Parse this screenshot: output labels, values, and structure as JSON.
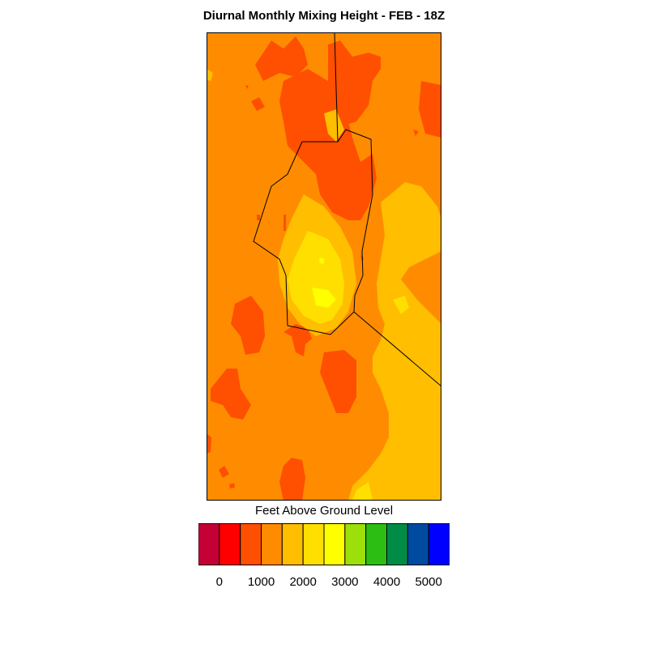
{
  "title": "Diurnal Monthly Mixing Height - FEB - 18Z",
  "colorbar": {
    "label": "Feet Above Ground Level",
    "colors": [
      "#c40034",
      "#ff0000",
      "#ff4f00",
      "#ff8c00",
      "#ffbe00",
      "#ffdf00",
      "#ffff00",
      "#9be00a",
      "#2dbe14",
      "#008c46",
      "#004ba0",
      "#0000ff"
    ],
    "tick_labels": [
      "0",
      "1000",
      "2000",
      "3000",
      "4000",
      "5000"
    ]
  },
  "chart_data": {
    "type": "heatmap",
    "title": "Diurnal Monthly Mixing Height - FEB - 18Z",
    "colorbar_label": "Feet Above Ground Level",
    "levels": [
      0,
      500,
      1000,
      1500,
      2000,
      2500,
      3000,
      3500,
      4000,
      4500,
      5000
    ],
    "colorbar_ticks": [
      0,
      1000,
      2000,
      3000,
      4000,
      5000
    ],
    "background_band": "1000-1500",
    "field_value_range": [
      500,
      3000
    ]
  }
}
